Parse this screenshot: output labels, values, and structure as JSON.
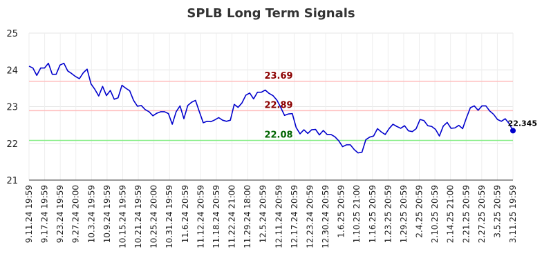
{
  "chart_data": {
    "type": "line",
    "title": "SPLB Long Term Signals",
    "xlabel": "",
    "ylabel": "",
    "ylim": [
      21,
      25
    ],
    "yticks": [
      21,
      22,
      23,
      24,
      25
    ],
    "grid": true,
    "x_tick_labels": [
      "9.11.24 19:59",
      "9.17.24 19:59",
      "9.23.24 19:59",
      "9.27.24 20:00",
      "10.3.24 19:59",
      "10.9.24 19:59",
      "10.15.24 19:59",
      "10.21.24 19:59",
      "10.25.24 20:00",
      "10.31.24 19:59",
      "11.6.24 20:59",
      "11.12.24 20:59",
      "11.18.24 20:59",
      "11.22.24 21:00",
      "11.29.24 18:00",
      "12.5.24 20:59",
      "12.11.24 20:59",
      "12.17.24 20:59",
      "12.23.24 20:59",
      "12.30.24 20:59",
      "1.6.25 20:59",
      "1.10.25 21:00",
      "1.16.25 20:59",
      "1.23.25 20:59",
      "1.29.25 20:59",
      "2.4.25 20:59",
      "2.10.25 20:59",
      "2.14.25 21:00",
      "2.21.25 20:59",
      "2.27.25 20:59",
      "3.5.25 20:59",
      "3.11.25 19:59"
    ],
    "series": [
      {
        "color": "#0000cc",
        "values": [
          24.1,
          24.05,
          23.85,
          24.05,
          24.05,
          24.18,
          23.88,
          23.88,
          24.13,
          24.18,
          23.97,
          23.9,
          23.82,
          23.76,
          23.92,
          24.02,
          23.62,
          23.47,
          23.29,
          23.55,
          23.3,
          23.44,
          23.2,
          23.24,
          23.58,
          23.5,
          23.43,
          23.17,
          23.01,
          23.03,
          22.92,
          22.86,
          22.75,
          22.82,
          22.86,
          22.86,
          22.81,
          22.52,
          22.86,
          23.02,
          22.67,
          23.03,
          23.12,
          23.17,
          22.86,
          22.56,
          22.6,
          22.59,
          22.64,
          22.7,
          22.63,
          22.6,
          22.63,
          23.06,
          22.98,
          23.1,
          23.31,
          23.37,
          23.21,
          23.39,
          23.39,
          23.45,
          23.36,
          23.3,
          23.18,
          22.98,
          22.76,
          22.8,
          22.81,
          22.43,
          22.26,
          22.37,
          22.27,
          22.37,
          22.38,
          22.23,
          22.35,
          22.24,
          22.24,
          22.18,
          22.07,
          21.91,
          21.96,
          21.96,
          21.83,
          21.74,
          21.76,
          22.1,
          22.17,
          22.2,
          22.4,
          22.31,
          22.24,
          22.4,
          22.52,
          22.46,
          22.41,
          22.48,
          22.34,
          22.32,
          22.4,
          22.65,
          22.62,
          22.48,
          22.46,
          22.38,
          22.2,
          22.47,
          22.57,
          22.41,
          22.42,
          22.49,
          22.4,
          22.7,
          22.97,
          23.02,
          22.9,
          23.02,
          23.02,
          22.88,
          22.79,
          22.65,
          22.6,
          22.67,
          22.54,
          22.345
        ]
      }
    ],
    "last_value_label": "22.345",
    "reference_lines": [
      {
        "value": 23.69,
        "label": "23.69",
        "line_color": "#ffbbbb",
        "text_color": "#8b0000"
      },
      {
        "value": 22.89,
        "label": "22.89",
        "line_color": "#ffbbbb",
        "text_color": "#8b0000"
      },
      {
        "value": 22.08,
        "label": "22.08",
        "line_color": "#88ee88",
        "text_color": "#006400"
      }
    ]
  }
}
